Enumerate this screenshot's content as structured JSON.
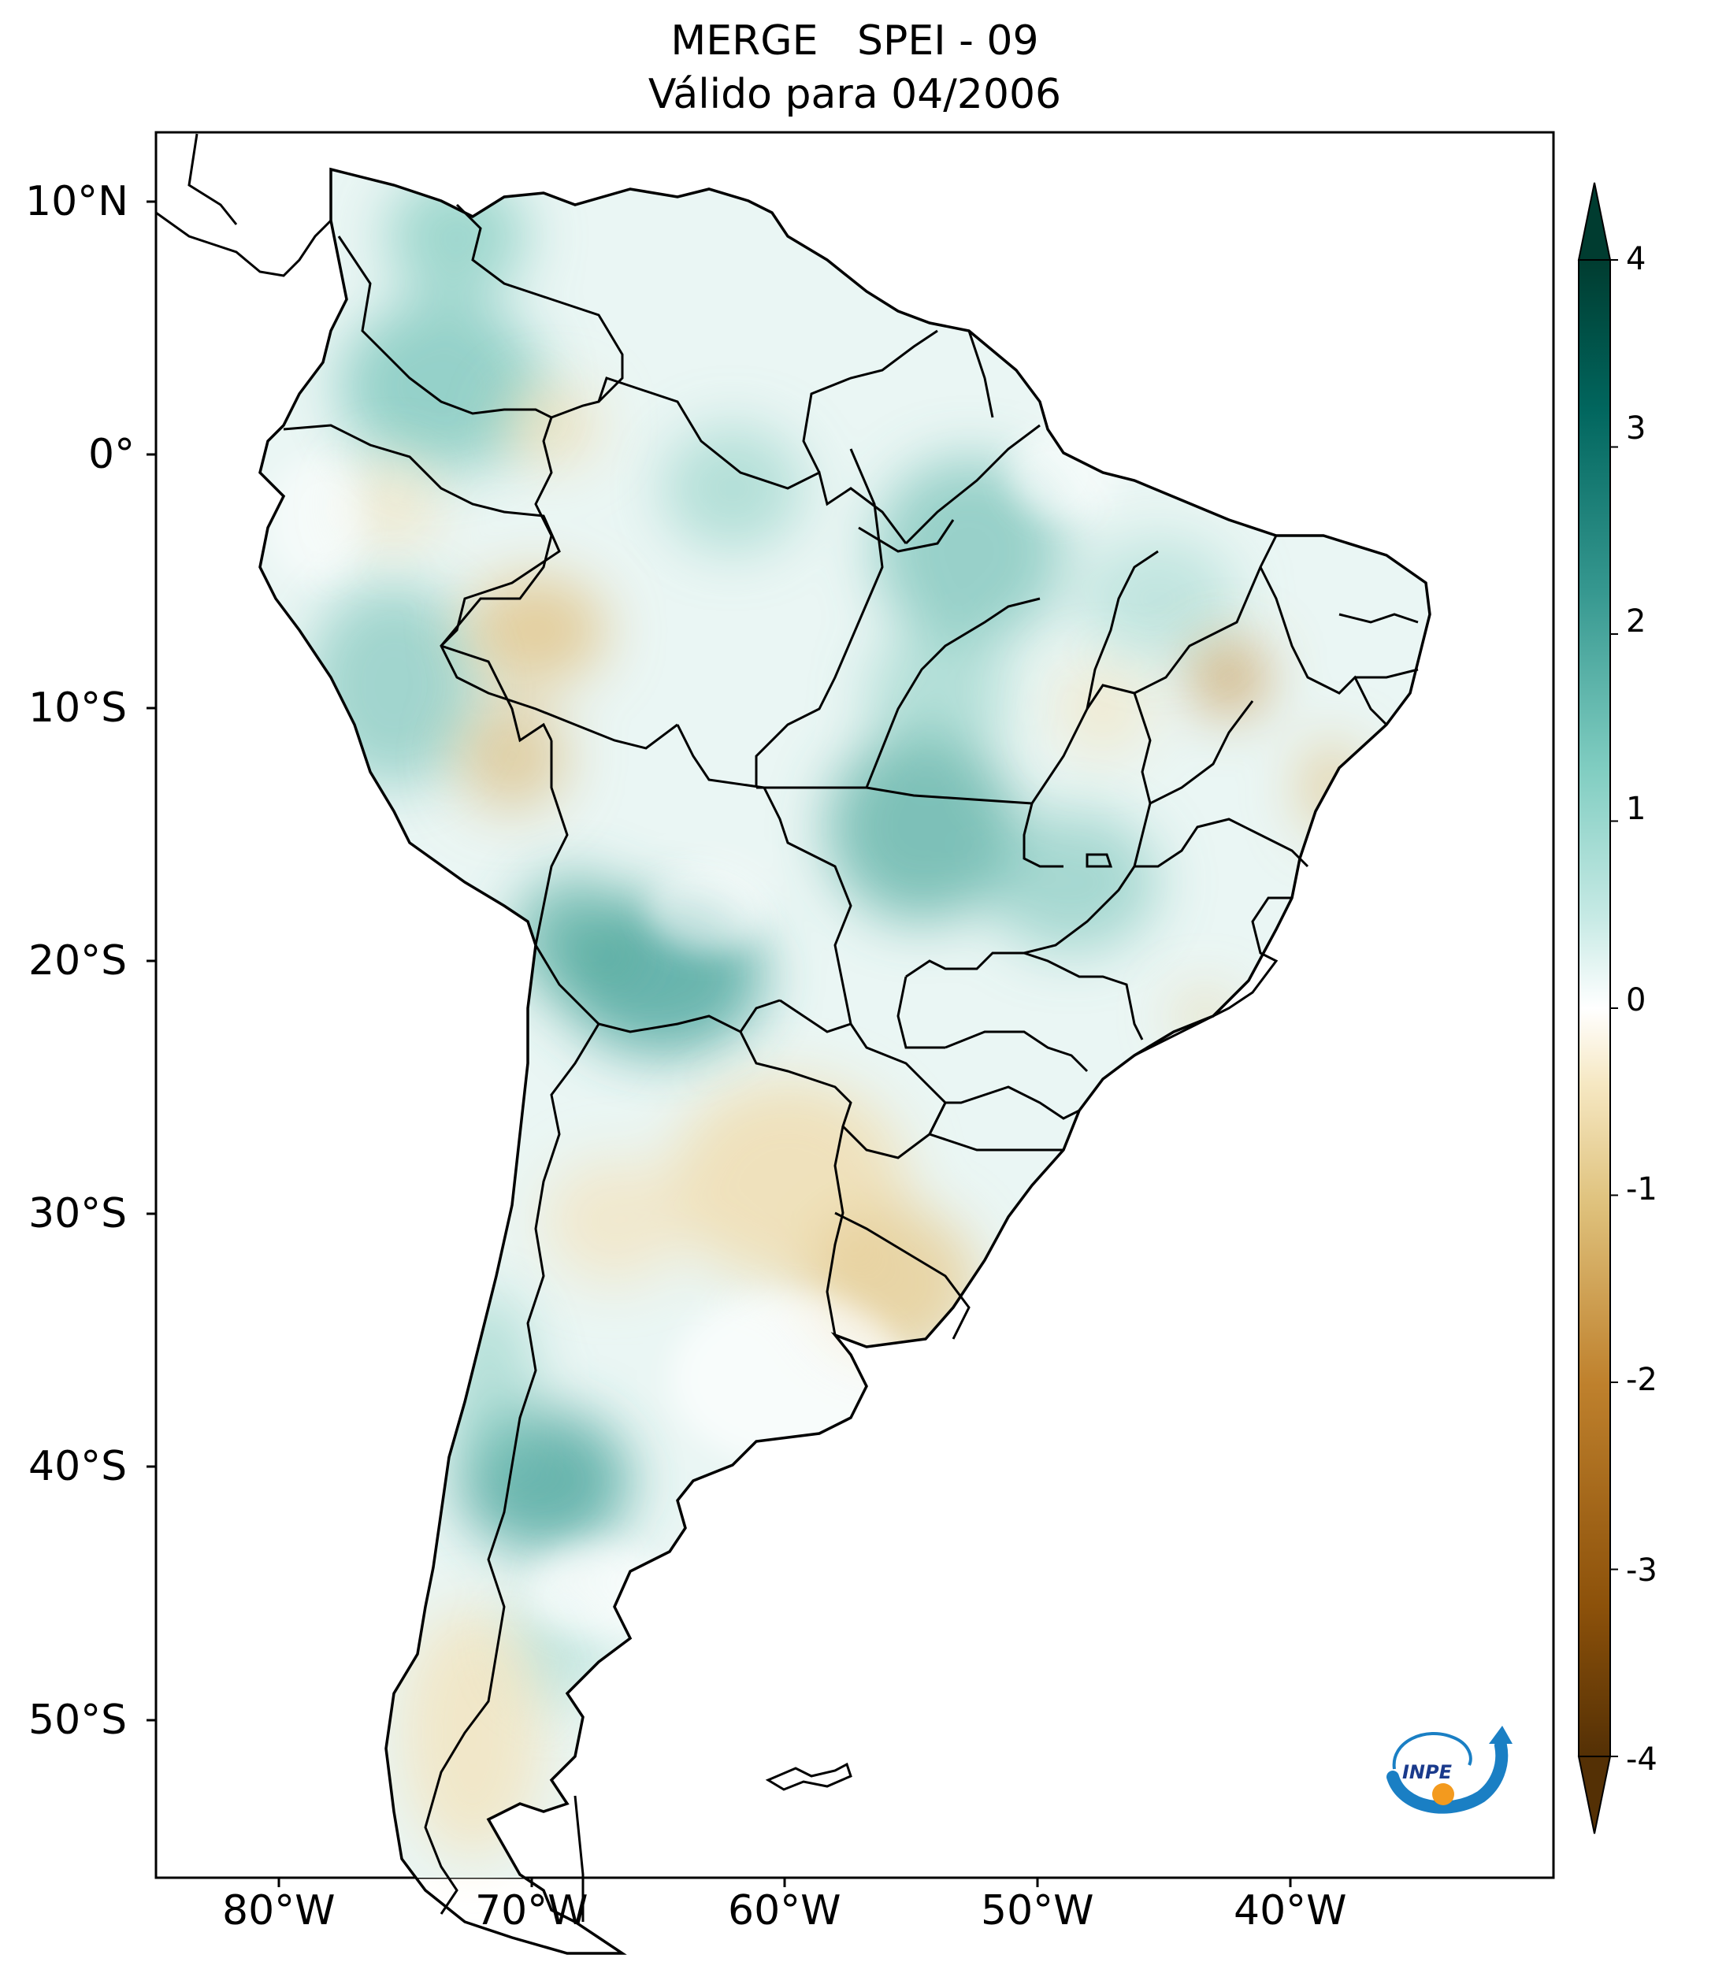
{
  "title": {
    "line1": "MERGE   SPEI - 09",
    "line2": "Válido para 04/2006"
  },
  "map": {
    "region": "South America",
    "lon_range": [
      -85,
      -30
    ],
    "lat_range": [
      -56,
      13
    ],
    "lat_ticks": [
      "10°N",
      "0°",
      "10°S",
      "20°S",
      "30°S",
      "40°S",
      "50°S"
    ],
    "lon_ticks": [
      "80°W",
      "70°W",
      "60°W",
      "50°W",
      "40°W"
    ]
  },
  "colorbar": {
    "ticks": [
      "4",
      "3",
      "2",
      "1",
      "0",
      "-1",
      "-2",
      "-3",
      "-4"
    ],
    "range": [
      -4,
      4
    ],
    "extend": "both",
    "colormap": [
      "#543005",
      "#8c510a",
      "#bf812d",
      "#dfc27d",
      "#f6e8c3",
      "#ffffff",
      "#c7eae5",
      "#80cdc1",
      "#35978f",
      "#01665e",
      "#003c30"
    ]
  },
  "logo": {
    "text": "INPE"
  }
}
